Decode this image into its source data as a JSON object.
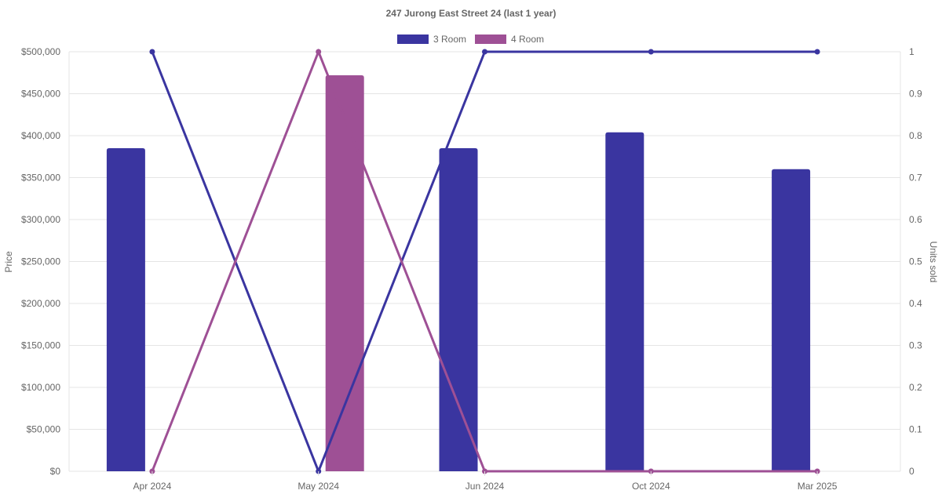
{
  "chart_data": {
    "type": "bar",
    "title": "247 Jurong East Street 24 (last 1 year)",
    "categories": [
      "Apr 2024",
      "May 2024",
      "Jun 2024",
      "Oct 2024",
      "Mar 2025"
    ],
    "ylabel_left": "Price",
    "ylabel_right": "Units sold",
    "ylim_left": [
      0,
      500000
    ],
    "ylim_right": [
      0,
      1
    ],
    "yticks_left": [
      "$0",
      "$50,000",
      "$100,000",
      "$150,000",
      "$200,000",
      "$250,000",
      "$300,000",
      "$350,000",
      "$400,000",
      "$450,000",
      "$500,000"
    ],
    "yticks_right": [
      "0",
      "0.1",
      "0.2",
      "0.3",
      "0.4",
      "0.5",
      "0.6",
      "0.7",
      "0.8",
      "0.9",
      "1"
    ],
    "grid": true,
    "legend_position": "top-center",
    "series": [
      {
        "name": "3 Room",
        "color": "#3a35a0",
        "price": [
          385000,
          null,
          385000,
          404000,
          360000
        ],
        "units_sold": [
          1,
          0,
          1,
          1,
          1
        ]
      },
      {
        "name": "4 Room",
        "color": "#9e5095",
        "price": [
          null,
          472000,
          null,
          null,
          null
        ],
        "units_sold": [
          0,
          1,
          0,
          0,
          0
        ]
      }
    ]
  }
}
